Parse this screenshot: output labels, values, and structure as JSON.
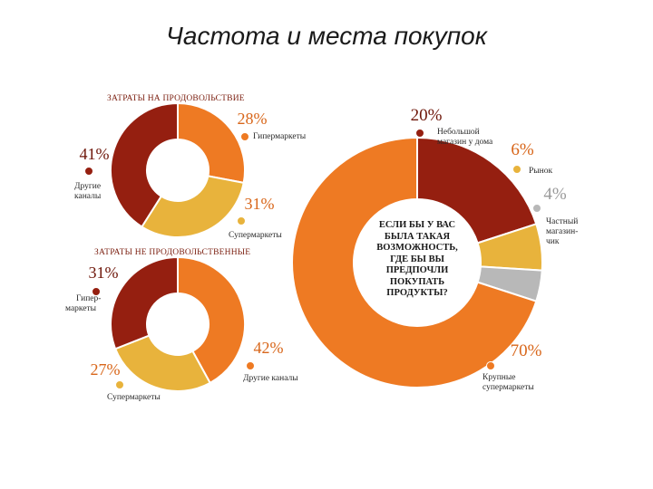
{
  "page": {
    "title": "Частота и места покупок"
  },
  "center_question": "ЕСЛИ БЫ У ВАС БЫЛА ТАКАЯ ВОЗМОЖНОСТЬ, ГДЕ БЫ ВЫ ПРЕДПОЧЛИ ПОКУПАТЬ ПРОДУКТЫ?",
  "colors": {
    "dark_red": "#951f10",
    "orange": "#ee7a23",
    "yellow": "#e8b33c",
    "gray": "#b8b8b8"
  },
  "chart_data": [
    {
      "type": "pie",
      "title": "ЗАТРАТЫ НА ПРОДОВОЛЬСТВИЕ",
      "slices": [
        {
          "label": "Гипермаркеты",
          "value": 28,
          "pct": "28%",
          "color": "#ee7a23"
        },
        {
          "label": "Супермаркеты",
          "value": 31,
          "pct": "31%",
          "color": "#e8b33c"
        },
        {
          "label": "Другие каналы",
          "value": 41,
          "pct": "41%",
          "color": "#951f10"
        }
      ]
    },
    {
      "type": "pie",
      "title": "ЗАТРАТЫ НЕ ПРОДОВОЛЬСТВЕННЫЕ",
      "slices": [
        {
          "label": "Другие каналы",
          "value": 42,
          "pct": "42%",
          "color": "#ee7a23"
        },
        {
          "label": "Супермаркеты",
          "value": 27,
          "pct": "27%",
          "color": "#e8b33c"
        },
        {
          "label": "Гипер-маркеты",
          "value": 31,
          "pct": "31%",
          "color": "#951f10"
        }
      ]
    },
    {
      "type": "pie",
      "title": "",
      "slices": [
        {
          "label": "Небольшой магазин у дома",
          "value": 20,
          "pct": "20%",
          "color": "#951f10"
        },
        {
          "label": "Рынок",
          "value": 6,
          "pct": "6%",
          "color": "#e8b33c"
        },
        {
          "label": "Частный магазин-чик",
          "value": 4,
          "pct": "4%",
          "color": "#b8b8b8"
        },
        {
          "label": "Крупные супермаркеты",
          "value": 70,
          "pct": "70%",
          "color": "#ee7a23"
        }
      ]
    }
  ]
}
